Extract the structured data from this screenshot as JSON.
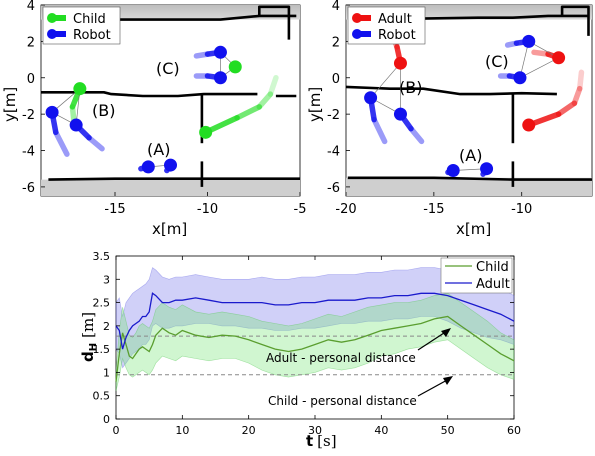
{
  "chart_data": [
    {
      "type": "scatter",
      "xlabel": "x[m]",
      "ylabel": "y[m]",
      "xlim": [
        -19,
        -5
      ],
      "ylim": [
        -6.5,
        4
      ],
      "xticks": [
        -15,
        -10,
        -5
      ],
      "yticks": [
        4,
        2,
        0,
        -2,
        -4,
        -6
      ],
      "legend": {
        "placement": "top-left",
        "entries": [
          "Child",
          "Robot"
        ]
      },
      "legend_colors": [
        "#22dd22",
        "#1111ee"
      ],
      "annotations": [
        "(A)",
        "(B)",
        "(C)"
      ],
      "series": [
        {
          "name": "Child",
          "color": "#22dd22",
          "points": [
            {
              "x": -16.9,
              "y": -0.6
            },
            {
              "x": -8.5,
              "y": 0.6
            },
            {
              "x": -10.1,
              "y": -3.0
            }
          ],
          "trails": [
            [
              [
                -16.9,
                -0.6
              ],
              [
                -17.3,
                -1.6
              ],
              [
                -17.2,
                -2.6
              ]
            ],
            [
              [
                -10.1,
                -3.0
              ],
              [
                -8.4,
                -2.2
              ],
              [
                -7.2,
                -1.6
              ],
              [
                -6.6,
                -0.9
              ],
              [
                -6.3,
                0.0
              ]
            ]
          ]
        },
        {
          "name": "Robot",
          "color": "#1111ee",
          "points": [
            {
              "x": -18.4,
              "y": -1.9
            },
            {
              "x": -17.1,
              "y": -2.6
            },
            {
              "x": -9.3,
              "y": 1.4
            },
            {
              "x": -9.3,
              "y": 0.0
            },
            {
              "x": -13.2,
              "y": -4.9
            },
            {
              "x": -12.0,
              "y": -4.8
            }
          ],
          "trails": [
            [
              [
                -18.4,
                -1.9
              ],
              [
                -18.2,
                -3.0
              ],
              [
                -17.6,
                -4.2
              ]
            ],
            [
              [
                -17.1,
                -2.6
              ],
              [
                -16.4,
                -3.3
              ],
              [
                -15.7,
                -3.9
              ]
            ],
            [
              [
                -9.3,
                1.4
              ],
              [
                -10.0,
                1.3
              ],
              [
                -10.6,
                1.2
              ]
            ],
            [
              [
                -9.3,
                0.0
              ],
              [
                -10.0,
                0.1
              ],
              [
                -10.6,
                0.1
              ]
            ],
            [
              [
                -13.2,
                -4.9
              ],
              [
                -13.6,
                -5.0
              ]
            ],
            [
              [
                -12.0,
                -4.8
              ],
              [
                -12.2,
                -5.1
              ]
            ]
          ]
        }
      ],
      "walls": [
        [
          [
            -18.6,
            3.2
          ],
          [
            -9.3,
            3.2
          ],
          [
            -7.2,
            3.4
          ],
          [
            -5.2,
            3.4
          ]
        ],
        [
          [
            -7.2,
            3.4
          ],
          [
            -7.2,
            3.9
          ],
          [
            -5.6,
            3.9
          ],
          [
            -5.6,
            2.1
          ]
        ],
        [
          [
            -19,
            -0.8
          ],
          [
            -15.6,
            -0.8
          ],
          [
            -15.2,
            -0.9
          ],
          [
            -13.5,
            -1.0
          ],
          [
            -11.6,
            -1.0
          ],
          [
            -10.2,
            -0.9
          ],
          [
            -9.2,
            -0.9
          ],
          [
            -7.3,
            -0.9
          ]
        ],
        [
          [
            -6.3,
            -1.0
          ],
          [
            -5.2,
            -1.0
          ]
        ],
        [
          [
            -10.3,
            -0.9
          ],
          [
            -10.3,
            -3.6
          ]
        ],
        [
          [
            -10.3,
            -4.6
          ],
          [
            -10.3,
            -6.0
          ]
        ],
        [
          [
            -18.6,
            -5.6
          ],
          [
            -15.0,
            -5.55
          ],
          [
            -12.5,
            -5.55
          ],
          [
            -5.0,
            -5.55
          ]
        ]
      ]
    },
    {
      "type": "scatter",
      "xlabel": "x[m]",
      "ylabel": "y[m]",
      "xlim": [
        -20,
        -6
      ],
      "ylim": [
        -6.5,
        4
      ],
      "xticks": [
        -20,
        -15,
        -10
      ],
      "yticks": [
        4,
        2,
        0,
        -2,
        -4,
        -6
      ],
      "legend": {
        "placement": "top-left",
        "entries": [
          "Adult",
          "Robot"
        ]
      },
      "legend_colors": [
        "#ee1111",
        "#1111ee"
      ],
      "annotations": [
        "(A)",
        "(B)",
        "(C)"
      ],
      "series": [
        {
          "name": "Adult",
          "color": "#ee1111",
          "points": [
            {
              "x": -16.9,
              "y": 0.8
            },
            {
              "x": -7.9,
              "y": 1.1
            },
            {
              "x": -9.6,
              "y": -2.6
            }
          ],
          "trails": [
            [
              [
                -16.9,
                0.8
              ],
              [
                -17.1,
                1.7
              ],
              [
                -17.3,
                2.2
              ]
            ],
            [
              [
                -7.9,
                1.1
              ],
              [
                -8.5,
                1.3
              ],
              [
                -9.3,
                1.4
              ]
            ],
            [
              [
                -9.6,
                -2.6
              ],
              [
                -7.9,
                -2.0
              ],
              [
                -7.0,
                -1.4
              ],
              [
                -6.7,
                -0.6
              ],
              [
                -6.6,
                0.3
              ]
            ]
          ]
        },
        {
          "name": "Robot",
          "color": "#1111ee",
          "points": [
            {
              "x": -18.6,
              "y": -1.1
            },
            {
              "x": -16.9,
              "y": -2.0
            },
            {
              "x": -9.6,
              "y": 2.0
            },
            {
              "x": -10.1,
              "y": 0.0
            },
            {
              "x": -13.9,
              "y": -5.1
            },
            {
              "x": -12.0,
              "y": -5.0
            }
          ],
          "trails": [
            [
              [
                -18.6,
                -1.1
              ],
              [
                -18.4,
                -2.3
              ],
              [
                -17.8,
                -3.5
              ]
            ],
            [
              [
                -16.9,
                -2.0
              ],
              [
                -16.3,
                -2.8
              ],
              [
                -15.7,
                -3.5
              ]
            ],
            [
              [
                -9.6,
                2.0
              ],
              [
                -10.3,
                1.9
              ],
              [
                -10.8,
                1.8
              ]
            ],
            [
              [
                -10.1,
                0.0
              ],
              [
                -10.7,
                0.1
              ],
              [
                -11.2,
                0.1
              ]
            ],
            [
              [
                -13.9,
                -5.1
              ],
              [
                -14.2,
                -5.2
              ]
            ],
            [
              [
                -12.0,
                -5.0
              ],
              [
                -12.2,
                -5.3
              ]
            ]
          ]
        }
      ],
      "walls": [
        [
          [
            -19.6,
            3.2
          ],
          [
            -12.5,
            3.3
          ],
          [
            -10.5,
            3.3
          ],
          [
            -8.5,
            3.4
          ],
          [
            -6.2,
            3.4
          ]
        ],
        [
          [
            -7.7,
            3.4
          ],
          [
            -7.7,
            3.9
          ],
          [
            -6.2,
            3.9
          ],
          [
            -6.2,
            2.3
          ]
        ],
        [
          [
            -20,
            -0.5
          ],
          [
            -17.5,
            -0.6
          ],
          [
            -15.6,
            -0.6
          ],
          [
            -13.5,
            -0.9
          ],
          [
            -11.8,
            -0.9
          ],
          [
            -10.0,
            -0.85
          ],
          [
            -8.0,
            -0.9
          ]
        ],
        [
          [
            -10.5,
            -0.9
          ],
          [
            -10.5,
            -3.6
          ]
        ],
        [
          [
            -10.5,
            -4.6
          ],
          [
            -10.5,
            -6.0
          ]
        ],
        [
          [
            -19.9,
            -5.5
          ],
          [
            -15.0,
            -5.5
          ],
          [
            -10.5,
            -5.6
          ],
          [
            -6.0,
            -5.6
          ]
        ]
      ]
    },
    {
      "type": "line",
      "xlabel": "t [s]",
      "ylabel": "d_H [m]",
      "xlim": [
        0,
        60
      ],
      "ylim": [
        0,
        3.5
      ],
      "xticks": [
        0,
        10,
        20,
        30,
        40,
        50,
        60
      ],
      "yticks": [
        0,
        0.5,
        1,
        1.5,
        2,
        2.5,
        3,
        3.5
      ],
      "legend": {
        "placement": "top-right"
      },
      "reference_lines": [
        {
          "y": 1.78,
          "label": "Adult - personal distance"
        },
        {
          "y": 0.95,
          "label": "Child - personal distance"
        }
      ],
      "x": [
        0,
        0.5,
        1,
        1.5,
        2,
        2.5,
        3,
        3.5,
        4,
        4.5,
        5,
        5.5,
        6,
        7,
        8,
        9,
        10,
        12,
        14,
        16,
        18,
        20,
        22,
        24,
        26,
        28,
        30,
        32,
        34,
        36,
        38,
        40,
        42,
        44,
        46,
        48,
        50,
        52,
        54,
        56,
        58,
        60
      ],
      "series": [
        {
          "name": "Child",
          "color": "#5a9e2f",
          "values": [
            0.8,
            1.4,
            1.85,
            1.6,
            1.35,
            1.3,
            1.4,
            1.5,
            1.55,
            1.5,
            1.45,
            1.6,
            1.8,
            1.95,
            1.85,
            1.8,
            1.9,
            1.8,
            1.75,
            1.8,
            1.78,
            1.7,
            1.6,
            1.5,
            1.45,
            1.5,
            1.6,
            1.7,
            1.65,
            1.7,
            1.8,
            1.9,
            1.95,
            2.0,
            2.05,
            2.15,
            2.2,
            2.0,
            1.8,
            1.6,
            1.4,
            1.25
          ],
          "lower": [
            0.6,
            0.9,
            1.3,
            1.1,
            0.95,
            0.9,
            0.95,
            1.0,
            1.05,
            1.0,
            0.95,
            1.05,
            1.2,
            1.35,
            1.3,
            1.25,
            1.35,
            1.3,
            1.25,
            1.3,
            1.3,
            1.2,
            1.05,
            0.95,
            0.9,
            0.95,
            1.0,
            1.1,
            1.05,
            1.1,
            1.2,
            1.35,
            1.4,
            1.5,
            1.55,
            1.65,
            1.7,
            1.5,
            1.3,
            1.1,
            0.95,
            0.85
          ],
          "upper": [
            1.0,
            1.9,
            2.4,
            2.1,
            1.8,
            1.75,
            1.85,
            2.0,
            2.05,
            2.0,
            1.95,
            2.1,
            2.35,
            2.5,
            2.4,
            2.35,
            2.45,
            2.3,
            2.25,
            2.3,
            2.25,
            2.2,
            2.1,
            2.05,
            2.0,
            2.05,
            2.15,
            2.25,
            2.2,
            2.3,
            2.4,
            2.45,
            2.5,
            2.5,
            2.55,
            2.65,
            2.7,
            2.5,
            2.3,
            2.1,
            1.85,
            1.7
          ]
        },
        {
          "name": "Adult",
          "color": "#1a1acc",
          "values": [
            2.0,
            1.9,
            1.5,
            1.75,
            1.9,
            2.0,
            2.05,
            2.1,
            2.2,
            2.2,
            2.3,
            2.7,
            2.65,
            2.5,
            2.5,
            2.55,
            2.55,
            2.6,
            2.55,
            2.5,
            2.5,
            2.5,
            2.5,
            2.45,
            2.45,
            2.5,
            2.5,
            2.55,
            2.55,
            2.55,
            2.6,
            2.6,
            2.65,
            2.65,
            2.7,
            2.7,
            2.65,
            2.55,
            2.45,
            2.35,
            2.25,
            2.1
          ],
          "lower": [
            1.5,
            1.4,
            1.1,
            1.2,
            1.3,
            1.4,
            1.45,
            1.5,
            1.6,
            1.6,
            1.7,
            2.0,
            2.05,
            1.95,
            1.95,
            2.0,
            2.0,
            2.05,
            2.05,
            2.0,
            2.0,
            1.95,
            1.95,
            1.9,
            1.9,
            1.95,
            1.95,
            2.0,
            2.05,
            2.05,
            2.1,
            2.1,
            2.15,
            2.15,
            2.2,
            2.2,
            2.1,
            1.95,
            1.85,
            1.75,
            1.7,
            1.6
          ],
          "upper": [
            2.5,
            2.6,
            2.2,
            2.5,
            2.6,
            2.7,
            2.75,
            2.8,
            2.85,
            2.9,
            3.0,
            3.25,
            3.2,
            3.05,
            3.0,
            3.05,
            3.05,
            3.1,
            3.05,
            3.0,
            3.0,
            3.0,
            3.05,
            3.0,
            3.0,
            3.05,
            3.05,
            3.1,
            3.1,
            3.1,
            3.15,
            3.15,
            3.2,
            3.2,
            3.25,
            3.25,
            3.2,
            3.1,
            3.0,
            2.9,
            2.8,
            2.65
          ]
        }
      ]
    }
  ],
  "text": {
    "p1": {
      "xlabel": "x[m]",
      "ylabel": "y[m]",
      "xticks": [
        "-15",
        "-10",
        "-5"
      ],
      "yticks": [
        "4",
        "2",
        "0",
        "-2",
        "-4",
        "-6"
      ],
      "legend": [
        "Child",
        "Robot"
      ],
      "labA": "(A)",
      "labB": "(B)",
      "labC": "(C)"
    },
    "p2": {
      "xlabel": "x[m]",
      "ylabel": "y[m]",
      "xticks": [
        "-20",
        "-15",
        "-10"
      ],
      "yticks": [
        "4",
        "2",
        "0",
        "-2",
        "-4",
        "-6"
      ],
      "legend": [
        "Adult",
        "Robot"
      ],
      "labA": "(A)",
      "labB": "(B)",
      "labC": "(C)"
    },
    "p3": {
      "xlabel_main": "t",
      "xlabel_unit": "[s]",
      "ylabel_main": "d",
      "ylabel_sub": "H",
      "ylabel_unit": "[m]",
      "xticks": [
        "0",
        "10",
        "20",
        "30",
        "40",
        "50",
        "60"
      ],
      "yticks": [
        "0",
        "0.5",
        "1",
        "1.5",
        "2",
        "2.5",
        "3",
        "3.5"
      ],
      "legend": [
        "Child",
        "Adult"
      ],
      "adult_annot": "Adult - personal distance",
      "child_annot": "Child - personal distance"
    }
  }
}
